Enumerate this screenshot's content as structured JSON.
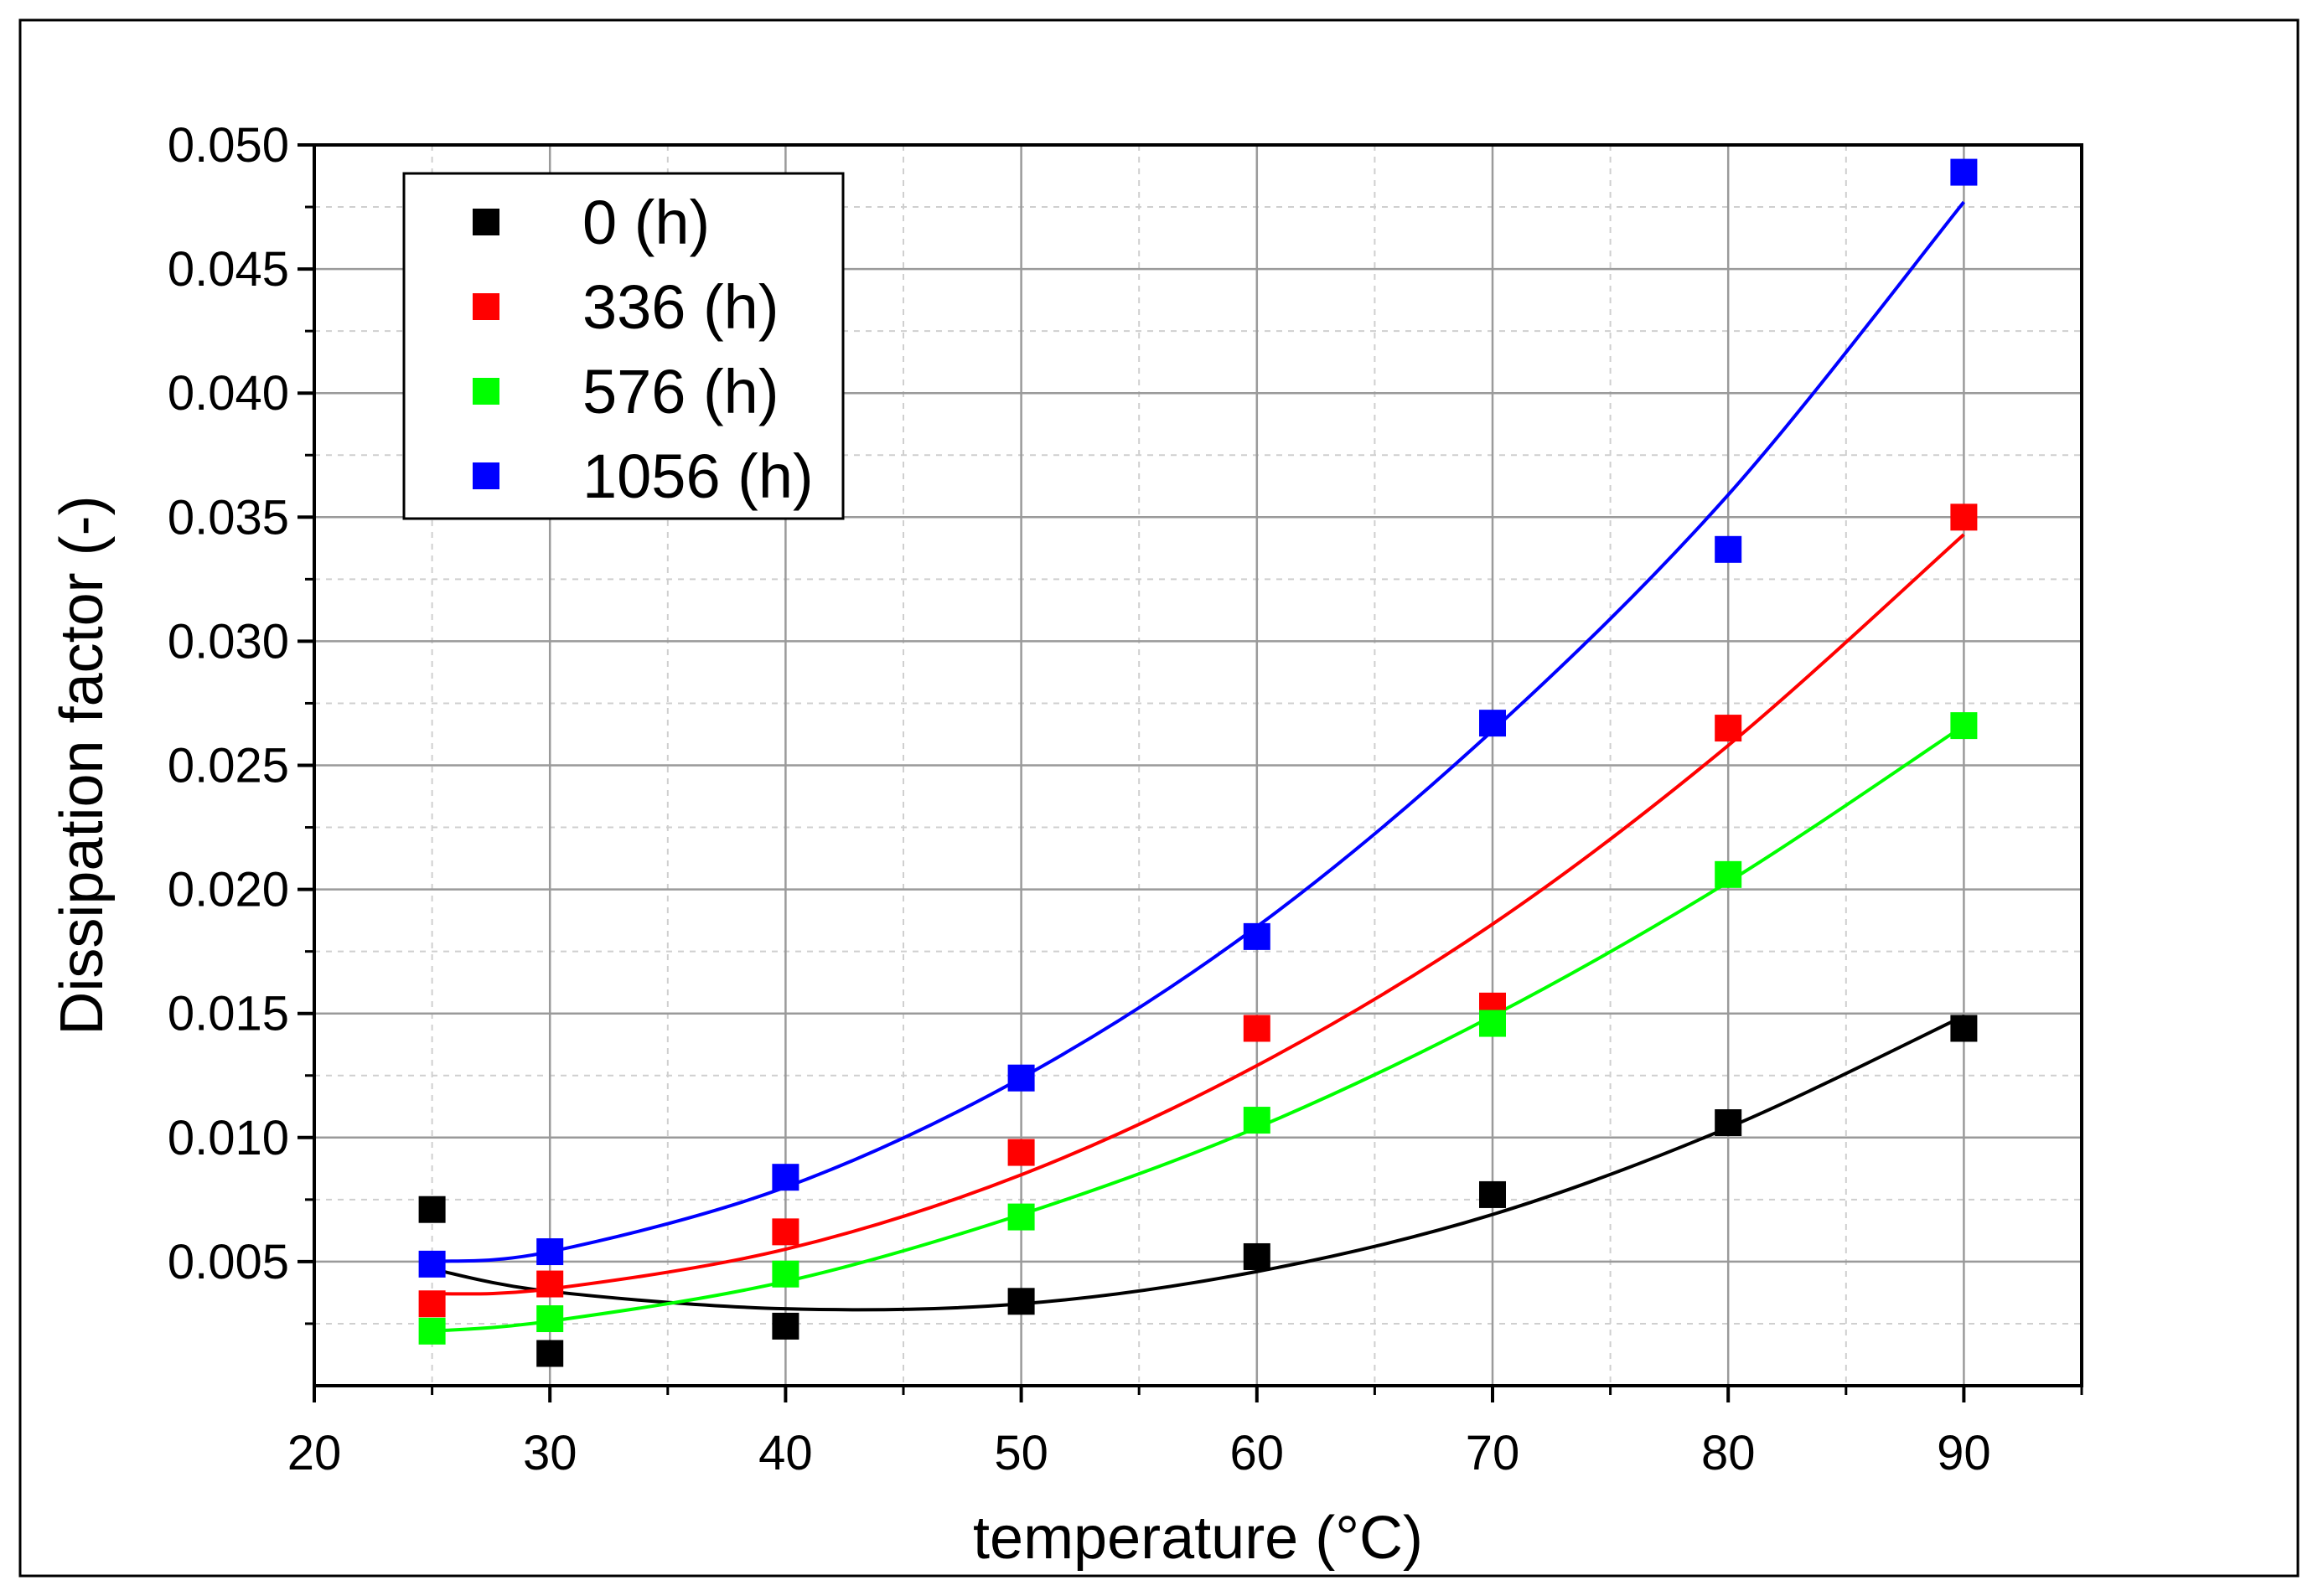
{
  "chart_data": {
    "type": "scatter",
    "title": "",
    "xlabel": "temperature (°C)",
    "ylabel": "Dissipation factor (-)",
    "xlim": [
      20,
      95
    ],
    "ylim": [
      0.0,
      0.05
    ],
    "xticks": [
      20,
      30,
      40,
      50,
      60,
      70,
      80,
      90
    ],
    "xtick_labels": [
      "20",
      "30",
      "40",
      "50",
      "60",
      "70",
      "80",
      "90"
    ],
    "yticks": [
      0.005,
      0.01,
      0.015,
      0.02,
      0.025,
      0.03,
      0.035,
      0.04,
      0.045,
      0.05
    ],
    "ytick_labels": [
      "0.005",
      "0.010",
      "0.015",
      "0.020",
      "0.025",
      "0.030",
      "0.035",
      "0.040",
      "0.045",
      "0.050"
    ],
    "grid": true,
    "legend_position": "top-left",
    "x": [
      25,
      30,
      40,
      50,
      60,
      70,
      80,
      90
    ],
    "series": [
      {
        "name": "0 (h)",
        "color": "#000000",
        "values": [
          0.0071,
          0.0013,
          0.0024,
          0.0034,
          0.0052,
          0.0077,
          0.0106,
          0.0144
        ],
        "fit": [
          0.0047,
          0.0038,
          0.0031,
          0.0033,
          0.0046,
          0.0069,
          0.0104,
          0.0149
        ]
      },
      {
        "name": "336 (h)",
        "color": "#ff0000",
        "values": [
          0.0033,
          0.0041,
          0.0062,
          0.0094,
          0.0144,
          0.0153,
          0.0265,
          0.035
        ],
        "fit": [
          0.0037,
          0.0039,
          0.0055,
          0.0085,
          0.0129,
          0.0186,
          0.0258,
          0.0343
        ]
      },
      {
        "name": "576 (h)",
        "color": "#00ff00",
        "values": [
          0.0022,
          0.0027,
          0.0045,
          0.0068,
          0.0107,
          0.0146,
          0.0206,
          0.0266
        ],
        "fit": [
          0.0022,
          0.0026,
          0.0042,
          0.0069,
          0.0104,
          0.0149,
          0.0203,
          0.0266
        ]
      },
      {
        "name": "1056 (h)",
        "color": "#0000ff",
        "values": [
          0.0049,
          0.0054,
          0.0084,
          0.0124,
          0.0181,
          0.0267,
          0.0337,
          0.0489
        ],
        "fit": [
          0.005,
          0.0054,
          0.008,
          0.0124,
          0.0185,
          0.0264,
          0.0359,
          0.0477
        ]
      }
    ]
  }
}
